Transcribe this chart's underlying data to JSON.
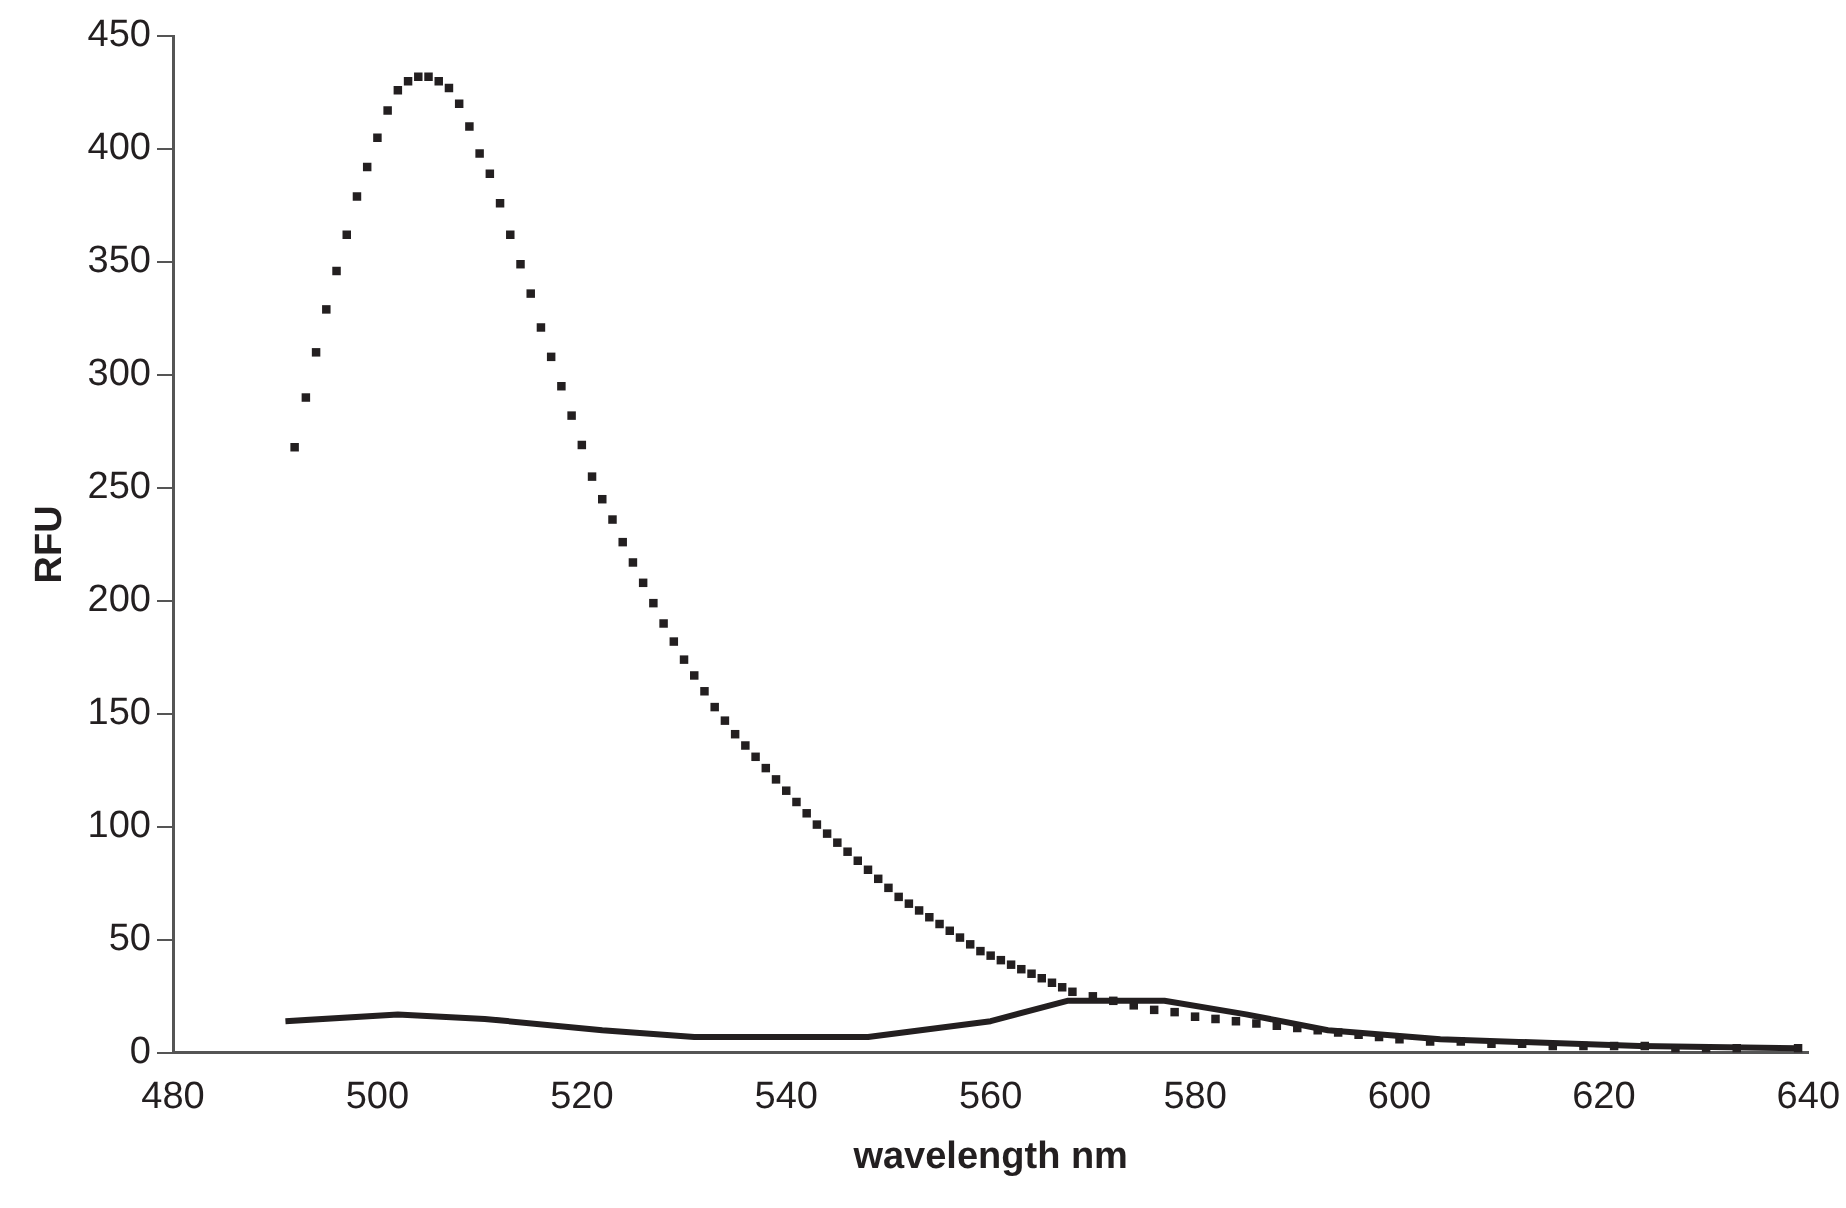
{
  "chart_data": {
    "type": "line",
    "xlabel": "wavelength nm",
    "ylabel": "RFU",
    "xlim": [
      480,
      640
    ],
    "xticks": [
      480,
      500,
      520,
      540,
      560,
      580,
      600,
      620,
      640
    ],
    "ylim": [
      0,
      450
    ],
    "yticks": [
      0,
      50,
      100,
      150,
      200,
      250,
      300,
      350,
      400,
      450
    ],
    "grid": false,
    "legend": false,
    "series": [
      {
        "type": "scatter",
        "marker": "square",
        "color": "#231f20",
        "x": [
          491.9,
          493,
          494,
          495,
          496,
          497,
          498,
          499,
          500,
          501,
          502,
          503,
          504,
          505,
          506,
          507,
          508,
          509,
          510,
          511,
          512,
          513,
          514,
          515,
          516,
          517,
          518,
          519,
          520,
          521,
          522,
          523,
          524,
          525,
          526,
          527,
          528,
          529,
          530,
          531,
          532,
          533,
          534,
          535,
          536,
          537,
          538,
          539,
          540,
          541,
          542,
          543,
          544,
          545,
          546,
          547,
          548,
          549,
          550,
          551,
          552,
          553,
          554,
          555,
          556,
          557,
          558,
          559,
          560,
          561,
          562,
          563,
          564,
          565,
          566,
          567,
          568,
          570,
          572,
          574,
          576,
          578,
          580,
          582,
          584,
          586,
          588,
          590,
          592,
          594,
          596,
          598,
          600,
          603,
          606,
          609,
          612,
          615,
          618,
          621,
          624,
          627,
          630,
          633,
          639
        ],
        "values": [
          268,
          290,
          310,
          329,
          346,
          362,
          379,
          392,
          405,
          417,
          426,
          430,
          432,
          432,
          430,
          427,
          420,
          410,
          398,
          389,
          376,
          362,
          349,
          336,
          321,
          308,
          295,
          282,
          269,
          255,
          245,
          236,
          226,
          217,
          208,
          199,
          190,
          182,
          174,
          167,
          160,
          153,
          147,
          141,
          136,
          131,
          126,
          121,
          116,
          111,
          106,
          101,
          97,
          93,
          89,
          85,
          81,
          77,
          73,
          69,
          66,
          63,
          60,
          57,
          54,
          51,
          48,
          45,
          43,
          41,
          39,
          37,
          35,
          33,
          31,
          29,
          27,
          25,
          23,
          21,
          19,
          18,
          16,
          15,
          14,
          13,
          12,
          11,
          10,
          9,
          8,
          7,
          6,
          5,
          5,
          4,
          4,
          3,
          3,
          3,
          3,
          2,
          2,
          2,
          2
        ]
      },
      {
        "type": "line",
        "marker": "none",
        "color": "#231f20",
        "x": [
          491,
          502,
          510.5,
          522,
          531,
          548,
          560,
          567.5,
          577,
          585,
          593,
          604,
          623.5,
          639
        ],
        "values": [
          14,
          17,
          15,
          10,
          7,
          7,
          14,
          23,
          23,
          17,
          10,
          6,
          3,
          2
        ]
      }
    ]
  }
}
